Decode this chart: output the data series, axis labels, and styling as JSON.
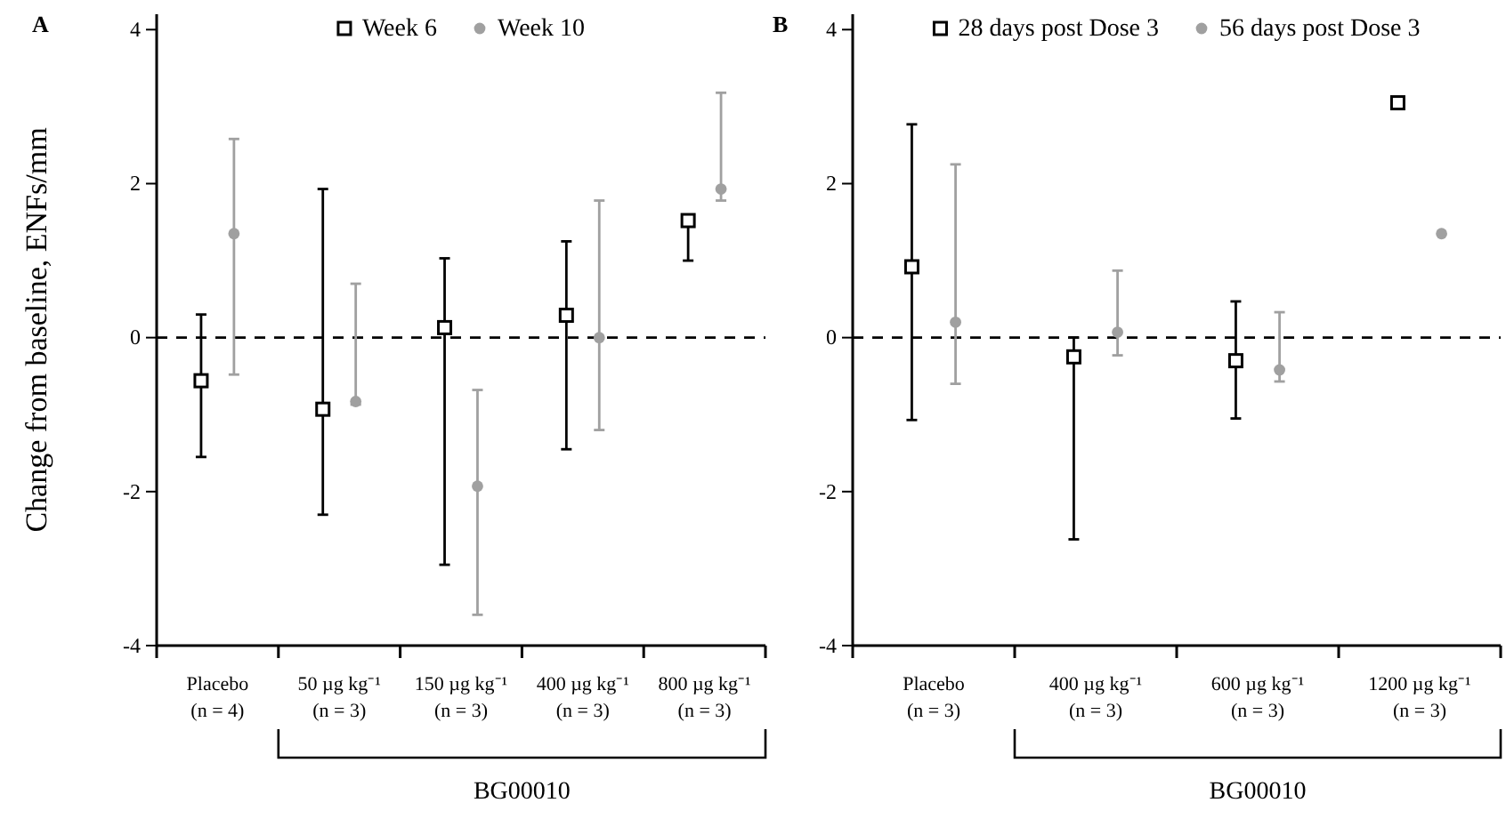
{
  "chart_data": [
    {
      "type": "scatter",
      "ylabel": "Change from baseline, ENFs/mm",
      "annotations": [
        "A",
        "BG00010"
      ],
      "categories": [
        "Placebo\n(n = 4)",
        "50 µg kg⁻¹\n(n = 3)",
        "150 µg kg⁻¹\n(n = 3)",
        "400 µg kg⁻¹\n(n = 3)",
        "800 µg kg⁻¹\n(n = 3)"
      ],
      "series": [
        {
          "name": "Week 6",
          "color": "#000000",
          "marker": "square",
          "values": [
            -0.56,
            -0.93,
            0.13,
            0.29,
            1.52
          ],
          "errors": [
            [
              -1.55,
              0.3
            ],
            [
              -2.3,
              1.93
            ],
            [
              -2.95,
              1.03
            ],
            [
              -1.45,
              1.25
            ],
            [
              1.0,
              1.55
            ]
          ]
        },
        {
          "name": "Week 10",
          "color": "#a0a0a0",
          "marker": "circle",
          "values": [
            1.35,
            -0.83,
            -1.93,
            0.0,
            1.93
          ],
          "errors": [
            [
              -0.48,
              2.58
            ],
            [
              -0.87,
              0.7
            ],
            [
              -3.6,
              -0.68
            ],
            [
              -1.2,
              1.78
            ],
            [
              1.78,
              3.18
            ]
          ]
        }
      ],
      "ylim": [
        -4,
        4.2
      ],
      "yticks": [
        -4,
        -2,
        0,
        2,
        4
      ],
      "ref_lines": [
        {
          "axis": "y",
          "value": 0,
          "line_style": "dashed"
        }
      ],
      "legend": "top",
      "grid": false
    },
    {
      "type": "scatter",
      "annotations": [
        "B",
        "BG00010"
      ],
      "categories": [
        "Placebo\n(n = 3)",
        "400 µg kg⁻¹\n(n = 3)",
        "600 µg kg⁻¹\n(n = 3)",
        "1200 µg kg⁻¹\n(n = 3)"
      ],
      "series": [
        {
          "name": "28 days post Dose 3",
          "color": "#000000",
          "marker": "square",
          "values": [
            0.92,
            -0.25,
            -0.3,
            3.05
          ],
          "errors": [
            [
              -1.07,
              2.77
            ],
            [
              -2.62,
              0.0
            ],
            [
              -1.05,
              0.47
            ],
            null
          ]
        },
        {
          "name": "56 days post Dose 3",
          "color": "#a0a0a0",
          "marker": "circle",
          "values": [
            0.2,
            0.07,
            -0.42,
            1.35
          ],
          "errors": [
            [
              -0.6,
              2.25
            ],
            [
              -0.23,
              0.87
            ],
            [
              -0.57,
              0.33
            ],
            null
          ]
        }
      ],
      "ylim": [
        -4,
        4.2
      ],
      "yticks": [
        -4,
        -2,
        0,
        2,
        4
      ],
      "ref_lines": [
        {
          "axis": "y",
          "value": 0,
          "line_style": "dashed"
        }
      ],
      "legend": "top",
      "grid": false
    }
  ]
}
